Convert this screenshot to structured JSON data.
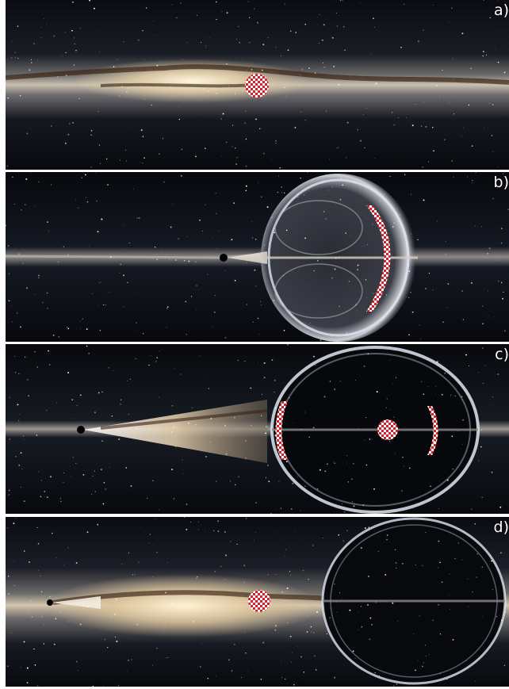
{
  "panels": [
    {
      "id": "a",
      "label": "a)"
    },
    {
      "id": "b",
      "label": "b)"
    },
    {
      "id": "c",
      "label": "c)"
    },
    {
      "id": "d",
      "label": "d)"
    }
  ],
  "colors": {
    "space": "#05070b",
    "milky_way_core": "#f3e6cf",
    "dust_lane": "#3a2414",
    "checker_red": "#d8202c",
    "checker_white": "#ffffff",
    "ring_glow": "#dfe6f2"
  }
}
